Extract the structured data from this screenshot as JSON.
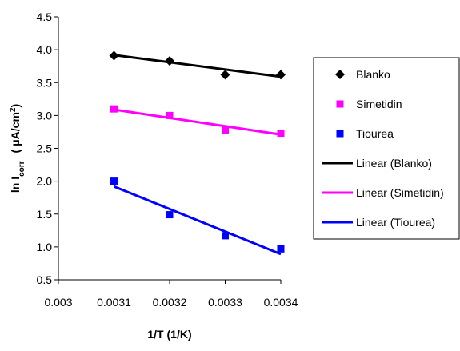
{
  "chart_data": {
    "type": "scatter",
    "xlabel": "1/T (1/K)",
    "ylabel": {
      "prefix": "ln I",
      "subscript": "corr",
      "unit_open": "( μA/cm",
      "superscript": "2",
      "unit_close": ")"
    },
    "xlim": [
      0.003,
      0.0034
    ],
    "ylim": [
      0.5,
      4.5
    ],
    "x_ticks": [
      0.003,
      0.0031,
      0.0032,
      0.0033,
      0.0034
    ],
    "x_tick_labels": [
      "0.003",
      "0.0031",
      "0.0032",
      "0.0033",
      "0.0034"
    ],
    "y_ticks": [
      0.5,
      1.0,
      1.5,
      2.0,
      2.5,
      3.0,
      3.5,
      4.0,
      4.5
    ],
    "y_tick_labels": [
      "0.5",
      "1.0",
      "1.5",
      "2.0",
      "2.5",
      "3.0",
      "3.5",
      "4.0",
      "4.5"
    ],
    "grid": false,
    "legend_position": "right",
    "series": [
      {
        "name": "Blanko",
        "marker": "diamond",
        "color": "#000000",
        "points": [
          [
            0.0031,
            3.91
          ],
          [
            0.0032,
            3.83
          ],
          [
            0.0033,
            3.62
          ],
          [
            0.0034,
            3.62
          ]
        ]
      },
      {
        "name": "Simetidin",
        "marker": "square",
        "color": "#ff00ff",
        "points": [
          [
            0.0031,
            3.1
          ],
          [
            0.0032,
            3.0
          ],
          [
            0.0033,
            2.77
          ],
          [
            0.0034,
            2.73
          ]
        ]
      },
      {
        "name": "Tiourea",
        "marker": "square",
        "color": "#0000ff",
        "points": [
          [
            0.0031,
            2.0
          ],
          [
            0.0032,
            1.49
          ],
          [
            0.0033,
            1.17
          ],
          [
            0.0034,
            0.97
          ]
        ]
      }
    ],
    "trendlines": [
      {
        "name": "Linear (Blanko)",
        "color": "#000000",
        "from": [
          0.0031,
          3.92
        ],
        "to": [
          0.0034,
          3.59
        ]
      },
      {
        "name": "Linear (Simetidin)",
        "color": "#ff00ff",
        "from": [
          0.0031,
          3.09
        ],
        "to": [
          0.0034,
          2.71
        ]
      },
      {
        "name": "Linear (Tiourea)",
        "color": "#0000ff",
        "from": [
          0.0031,
          1.92
        ],
        "to": [
          0.0034,
          0.89
        ]
      }
    ]
  }
}
